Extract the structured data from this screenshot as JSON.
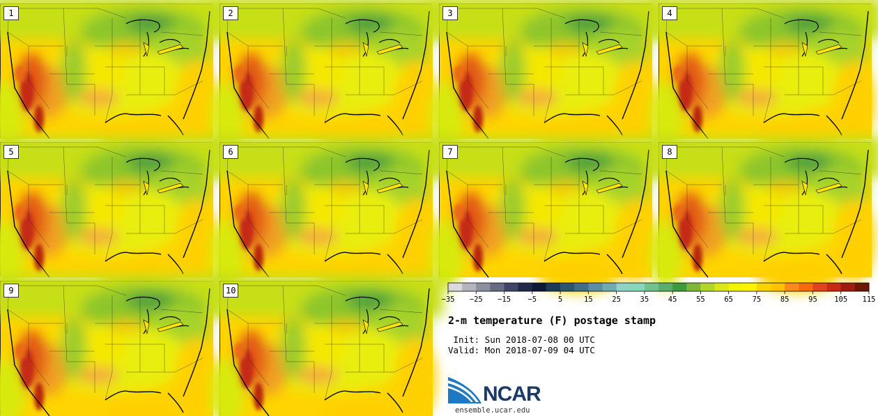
{
  "panels": [
    {
      "label": "1"
    },
    {
      "label": "2"
    },
    {
      "label": "3"
    },
    {
      "label": "4"
    },
    {
      "label": "5"
    },
    {
      "label": "6"
    },
    {
      "label": "7"
    },
    {
      "label": "8"
    },
    {
      "label": "9"
    },
    {
      "label": "10"
    }
  ],
  "colorbar": {
    "colors": [
      "#d9d9de",
      "#b4b4bd",
      "#8d8fa1",
      "#676b84",
      "#3e4566",
      "#1f2a4a",
      "#0d1a36",
      "#1d3a55",
      "#2c5570",
      "#3f6d86",
      "#5a8ea0",
      "#72aab2",
      "#8fd2c6",
      "#87d8bb",
      "#74c18f",
      "#5aad6f",
      "#3d9a3f",
      "#7eb63a",
      "#b3d62a",
      "#d9e816",
      "#f3f500",
      "#fff400",
      "#fad400",
      "#fcc400",
      "#fb8a1a",
      "#f66a0c",
      "#e1431d",
      "#c72a12",
      "#a11c10",
      "#6e1707"
    ],
    "ticks": [
      "−35",
      "−25",
      "−15",
      "−5",
      "5",
      "15",
      "25",
      "35",
      "45",
      "55",
      "65",
      "75",
      "85",
      "95",
      "105",
      "115"
    ]
  },
  "title": "2-m temperature (F) postage stamp",
  "init_line": " Init: Sun 2018-07-08 00 UTC",
  "valid_line": "Valid: Mon 2018-07-09 04 UTC",
  "logo": {
    "name": "NCAR",
    "url": "ensemble.ucar.edu"
  }
}
